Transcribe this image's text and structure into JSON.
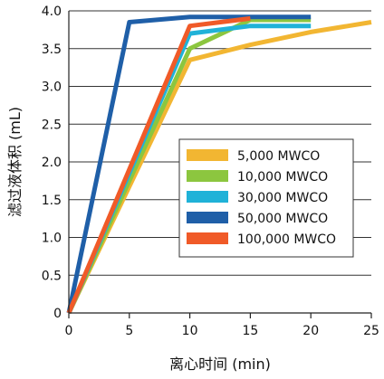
{
  "chart_data": {
    "type": "line",
    "title": "",
    "xlabel": "离心时间 (min)",
    "ylabel": "滤过液体积 (mL)",
    "xlim": [
      0,
      25
    ],
    "ylim": [
      0,
      4.0
    ],
    "x_ticks": [
      "0",
      "5",
      "10",
      "15",
      "20",
      "25"
    ],
    "y_ticks": [
      "0",
      "0.5",
      "1.0",
      "1.5",
      "2.0",
      "2.5",
      "3.0",
      "3.5",
      "4.0"
    ],
    "grid": "horizontal",
    "legend_position": "right",
    "series": [
      {
        "name": "5,000 MWCO",
        "color": "#f2b632",
        "points": [
          [
            0,
            0
          ],
          [
            10,
            3.35
          ],
          [
            15,
            3.55
          ],
          [
            20,
            3.72
          ],
          [
            25,
            3.85
          ]
        ]
      },
      {
        "name": "10,000 MWCO",
        "color": "#8cc63f",
        "points": [
          [
            0,
            0
          ],
          [
            10,
            3.5
          ],
          [
            15,
            3.88
          ],
          [
            20,
            3.88
          ]
        ]
      },
      {
        "name": "30,000 MWCO",
        "color": "#20b2d8",
        "points": [
          [
            0,
            0
          ],
          [
            10,
            3.7
          ],
          [
            15,
            3.8
          ],
          [
            20,
            3.8
          ]
        ]
      },
      {
        "name": "50,000 MWCO",
        "color": "#1f5fa8",
        "points": [
          [
            0,
            0
          ],
          [
            5,
            3.85
          ],
          [
            10,
            3.92
          ],
          [
            15,
            3.92
          ],
          [
            20,
            3.92
          ]
        ]
      },
      {
        "name": "100,000 MWCO",
        "color": "#f05a28",
        "points": [
          [
            0,
            0
          ],
          [
            10,
            3.8
          ],
          [
            15,
            3.9
          ]
        ]
      }
    ]
  }
}
